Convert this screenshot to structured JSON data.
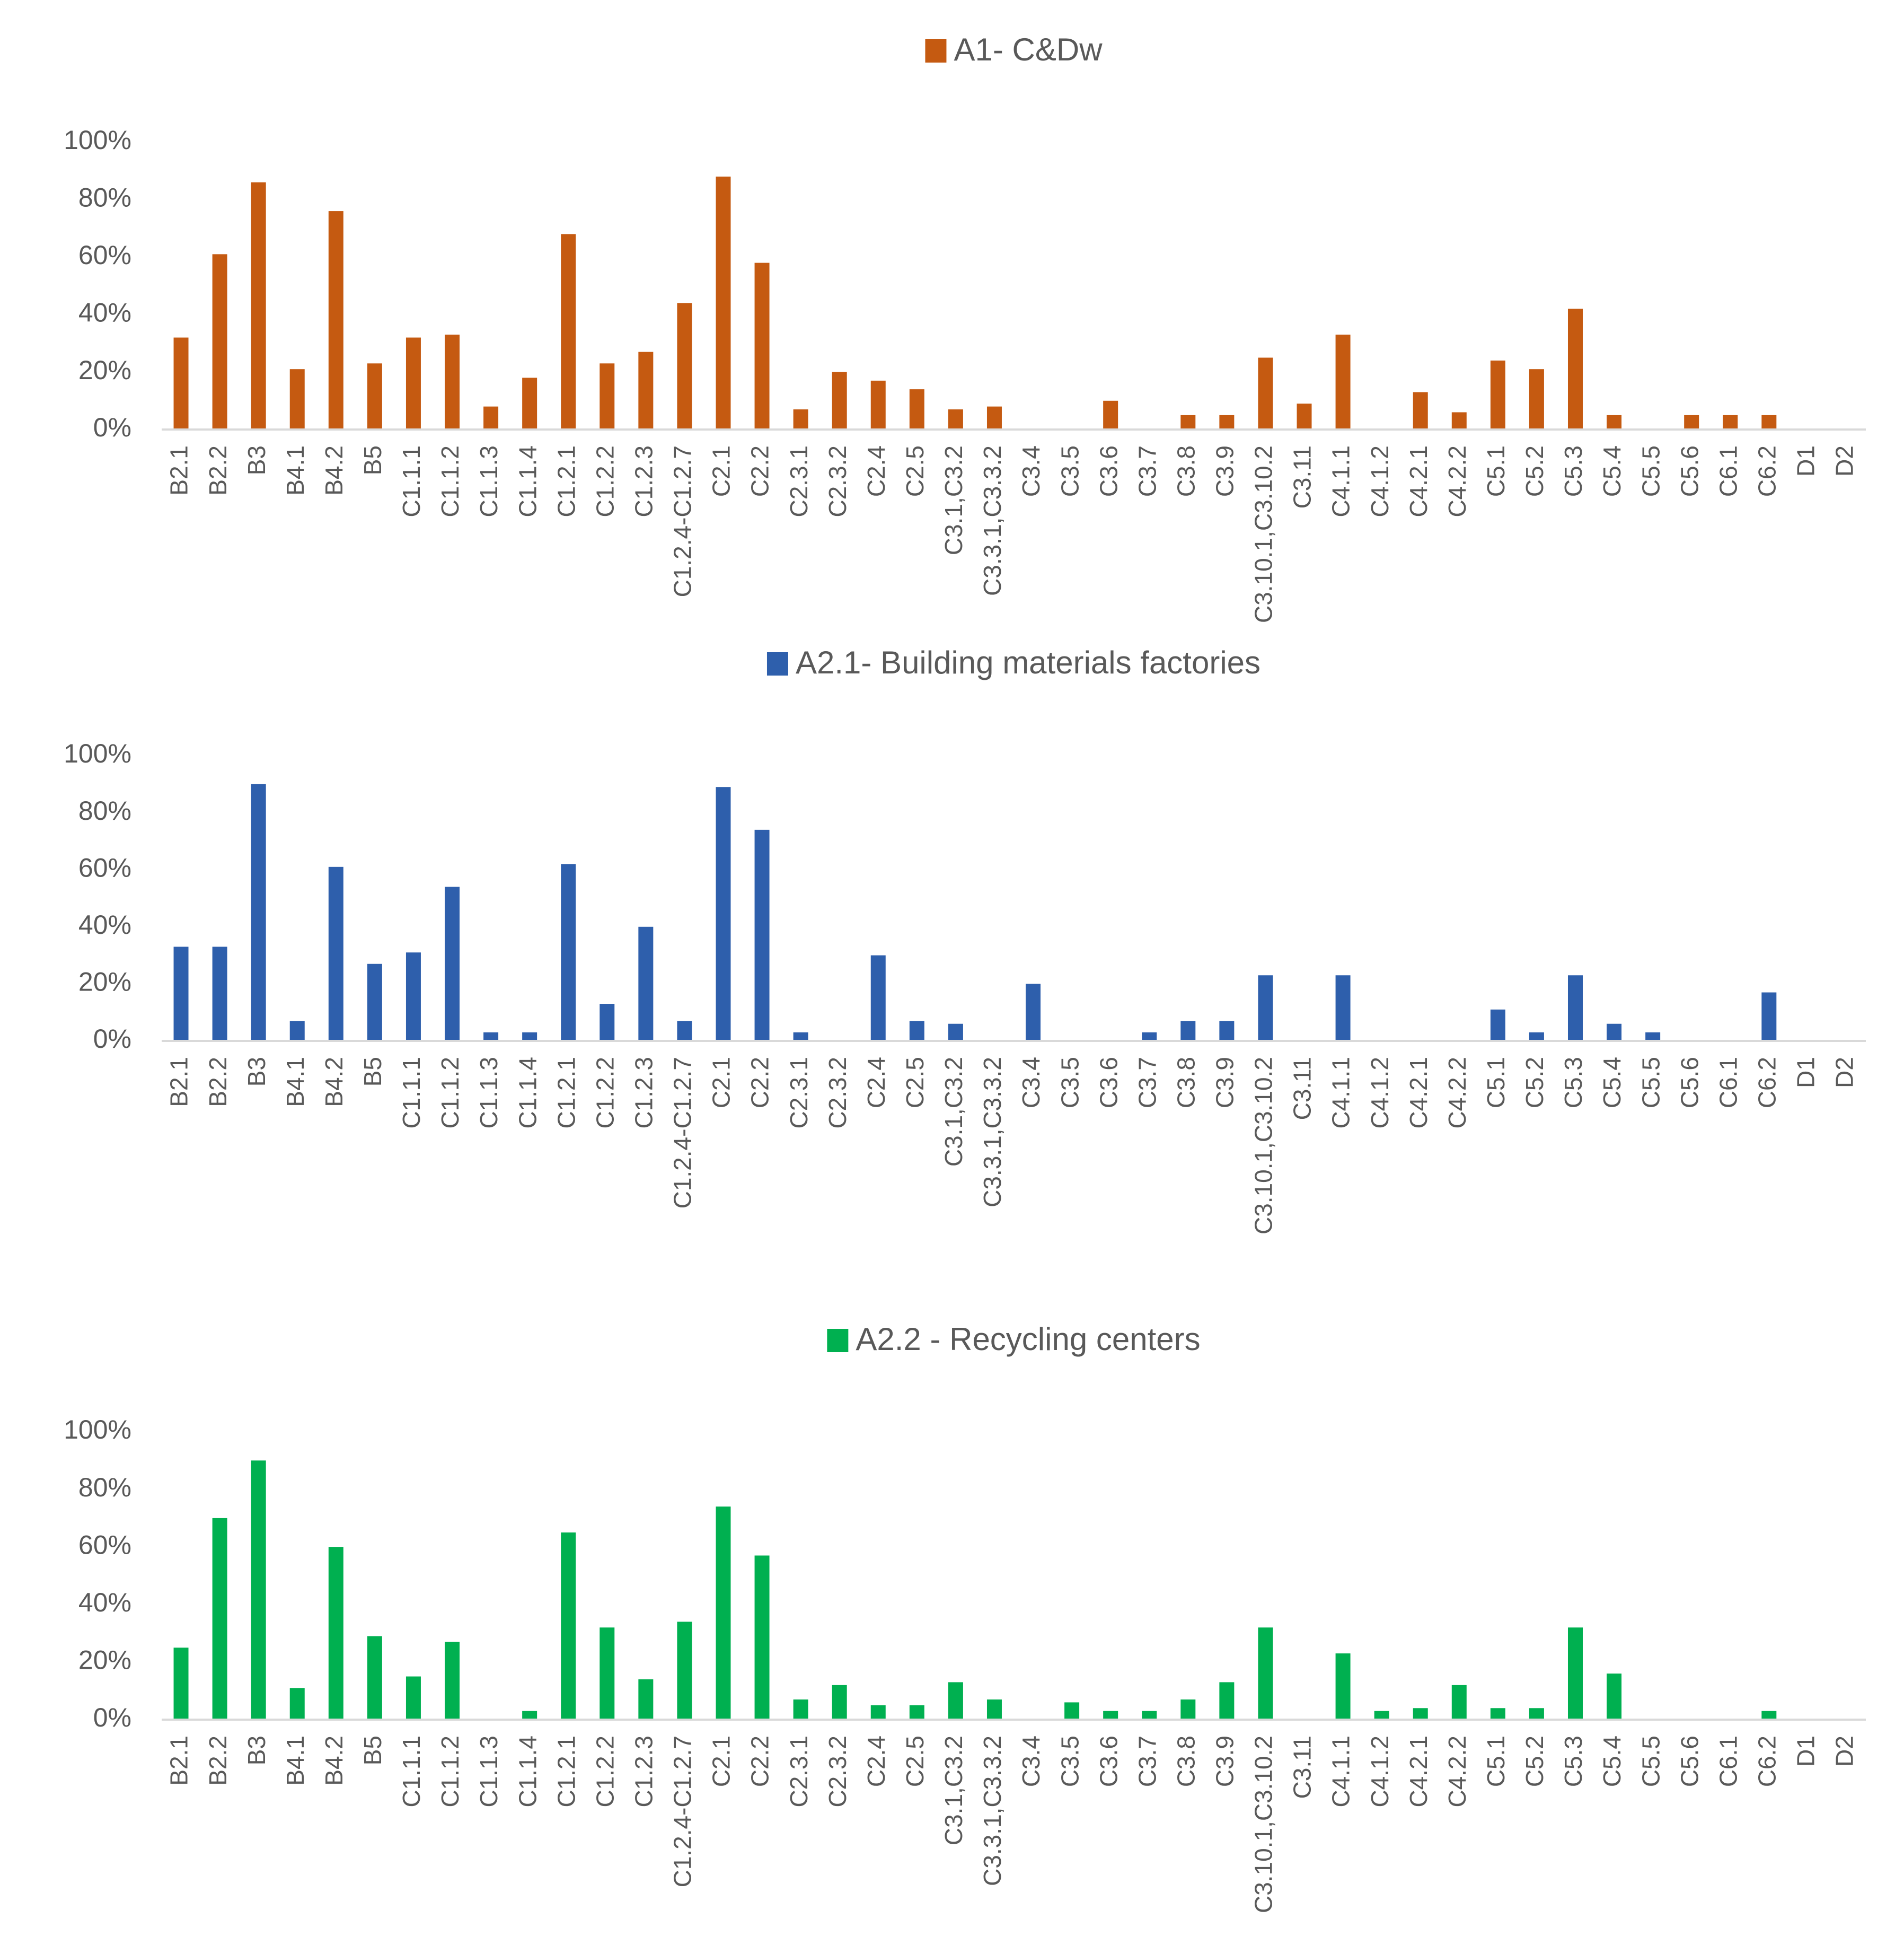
{
  "categories": [
    "B2.1",
    "B2.2",
    "B3",
    "B4.1",
    "B4.2",
    "B5",
    "C1.1.1",
    "C1.1.2",
    "C1.1.3",
    "C1.1.4",
    "C1.2.1",
    "C1.2.2",
    "C1.2.3",
    "C1.2.4-C1.2.7",
    "C2.1",
    "C2.2",
    "C2.3.1",
    "C2.3.2",
    "C2.4",
    "C2.5",
    "C3.1,C3.2",
    "C3.3.1,C3.3.2",
    "C3.4",
    "C3.5",
    "C3.6",
    "C3.7",
    "C3.8",
    "C3.9",
    "C3.10.1,C3.10.2",
    "C3.11",
    "C4.1.1",
    "C4.1.2",
    "C4.2.1",
    "C4.2.2",
    "C5.1",
    "C5.2",
    "C5.3",
    "C5.4",
    "C5.5",
    "C5.6",
    "C6.1",
    "C6.2",
    "D1",
    "D2"
  ],
  "chart_data": [
    {
      "type": "bar",
      "title": "A1- C&Dw",
      "legend": "A1- C&Dw",
      "color": "#C55A11",
      "ylim": [
        0,
        100
      ],
      "yticks": [
        "0%",
        "20%",
        "40%",
        "60%",
        "80%",
        "100%"
      ],
      "values": [
        32,
        61,
        86,
        21,
        76,
        23,
        32,
        33,
        8,
        18,
        68,
        23,
        27,
        44,
        88,
        58,
        7,
        20,
        17,
        14,
        7,
        8,
        0,
        0,
        10,
        0,
        5,
        5,
        25,
        9,
        33,
        0,
        13,
        6,
        24,
        21,
        42,
        5,
        0,
        5,
        5,
        5,
        0,
        0
      ]
    },
    {
      "type": "bar",
      "title": "A2.1- Building materials factories",
      "legend": "A2.1- Building materials factories",
      "color": "#2E5FAC",
      "ylim": [
        0,
        100
      ],
      "yticks": [
        "0%",
        "20%",
        "40%",
        "60%",
        "80%",
        "100%"
      ],
      "values": [
        33,
        33,
        90,
        7,
        61,
        27,
        31,
        54,
        3,
        3,
        62,
        13,
        40,
        7,
        89,
        74,
        3,
        0,
        30,
        7,
        6,
        0,
        20,
        0,
        0,
        3,
        7,
        7,
        23,
        0,
        23,
        0,
        0,
        0,
        11,
        3,
        23,
        6,
        3,
        0,
        0,
        17,
        0,
        0
      ]
    },
    {
      "type": "bar",
      "title": "A2.2 - Recycling centers",
      "legend": "A2.2 - Recycling centers",
      "color": "#00B050",
      "ylim": [
        0,
        100
      ],
      "yticks": [
        "0%",
        "20%",
        "40%",
        "60%",
        "80%",
        "100%"
      ],
      "values": [
        25,
        70,
        90,
        11,
        60,
        29,
        15,
        27,
        0,
        3,
        65,
        32,
        14,
        34,
        74,
        57,
        7,
        12,
        5,
        5,
        13,
        7,
        0,
        6,
        3,
        3,
        7,
        13,
        32,
        0,
        23,
        3,
        4,
        12,
        4,
        4,
        32,
        16,
        0,
        0,
        0,
        3,
        0,
        0
      ]
    }
  ]
}
